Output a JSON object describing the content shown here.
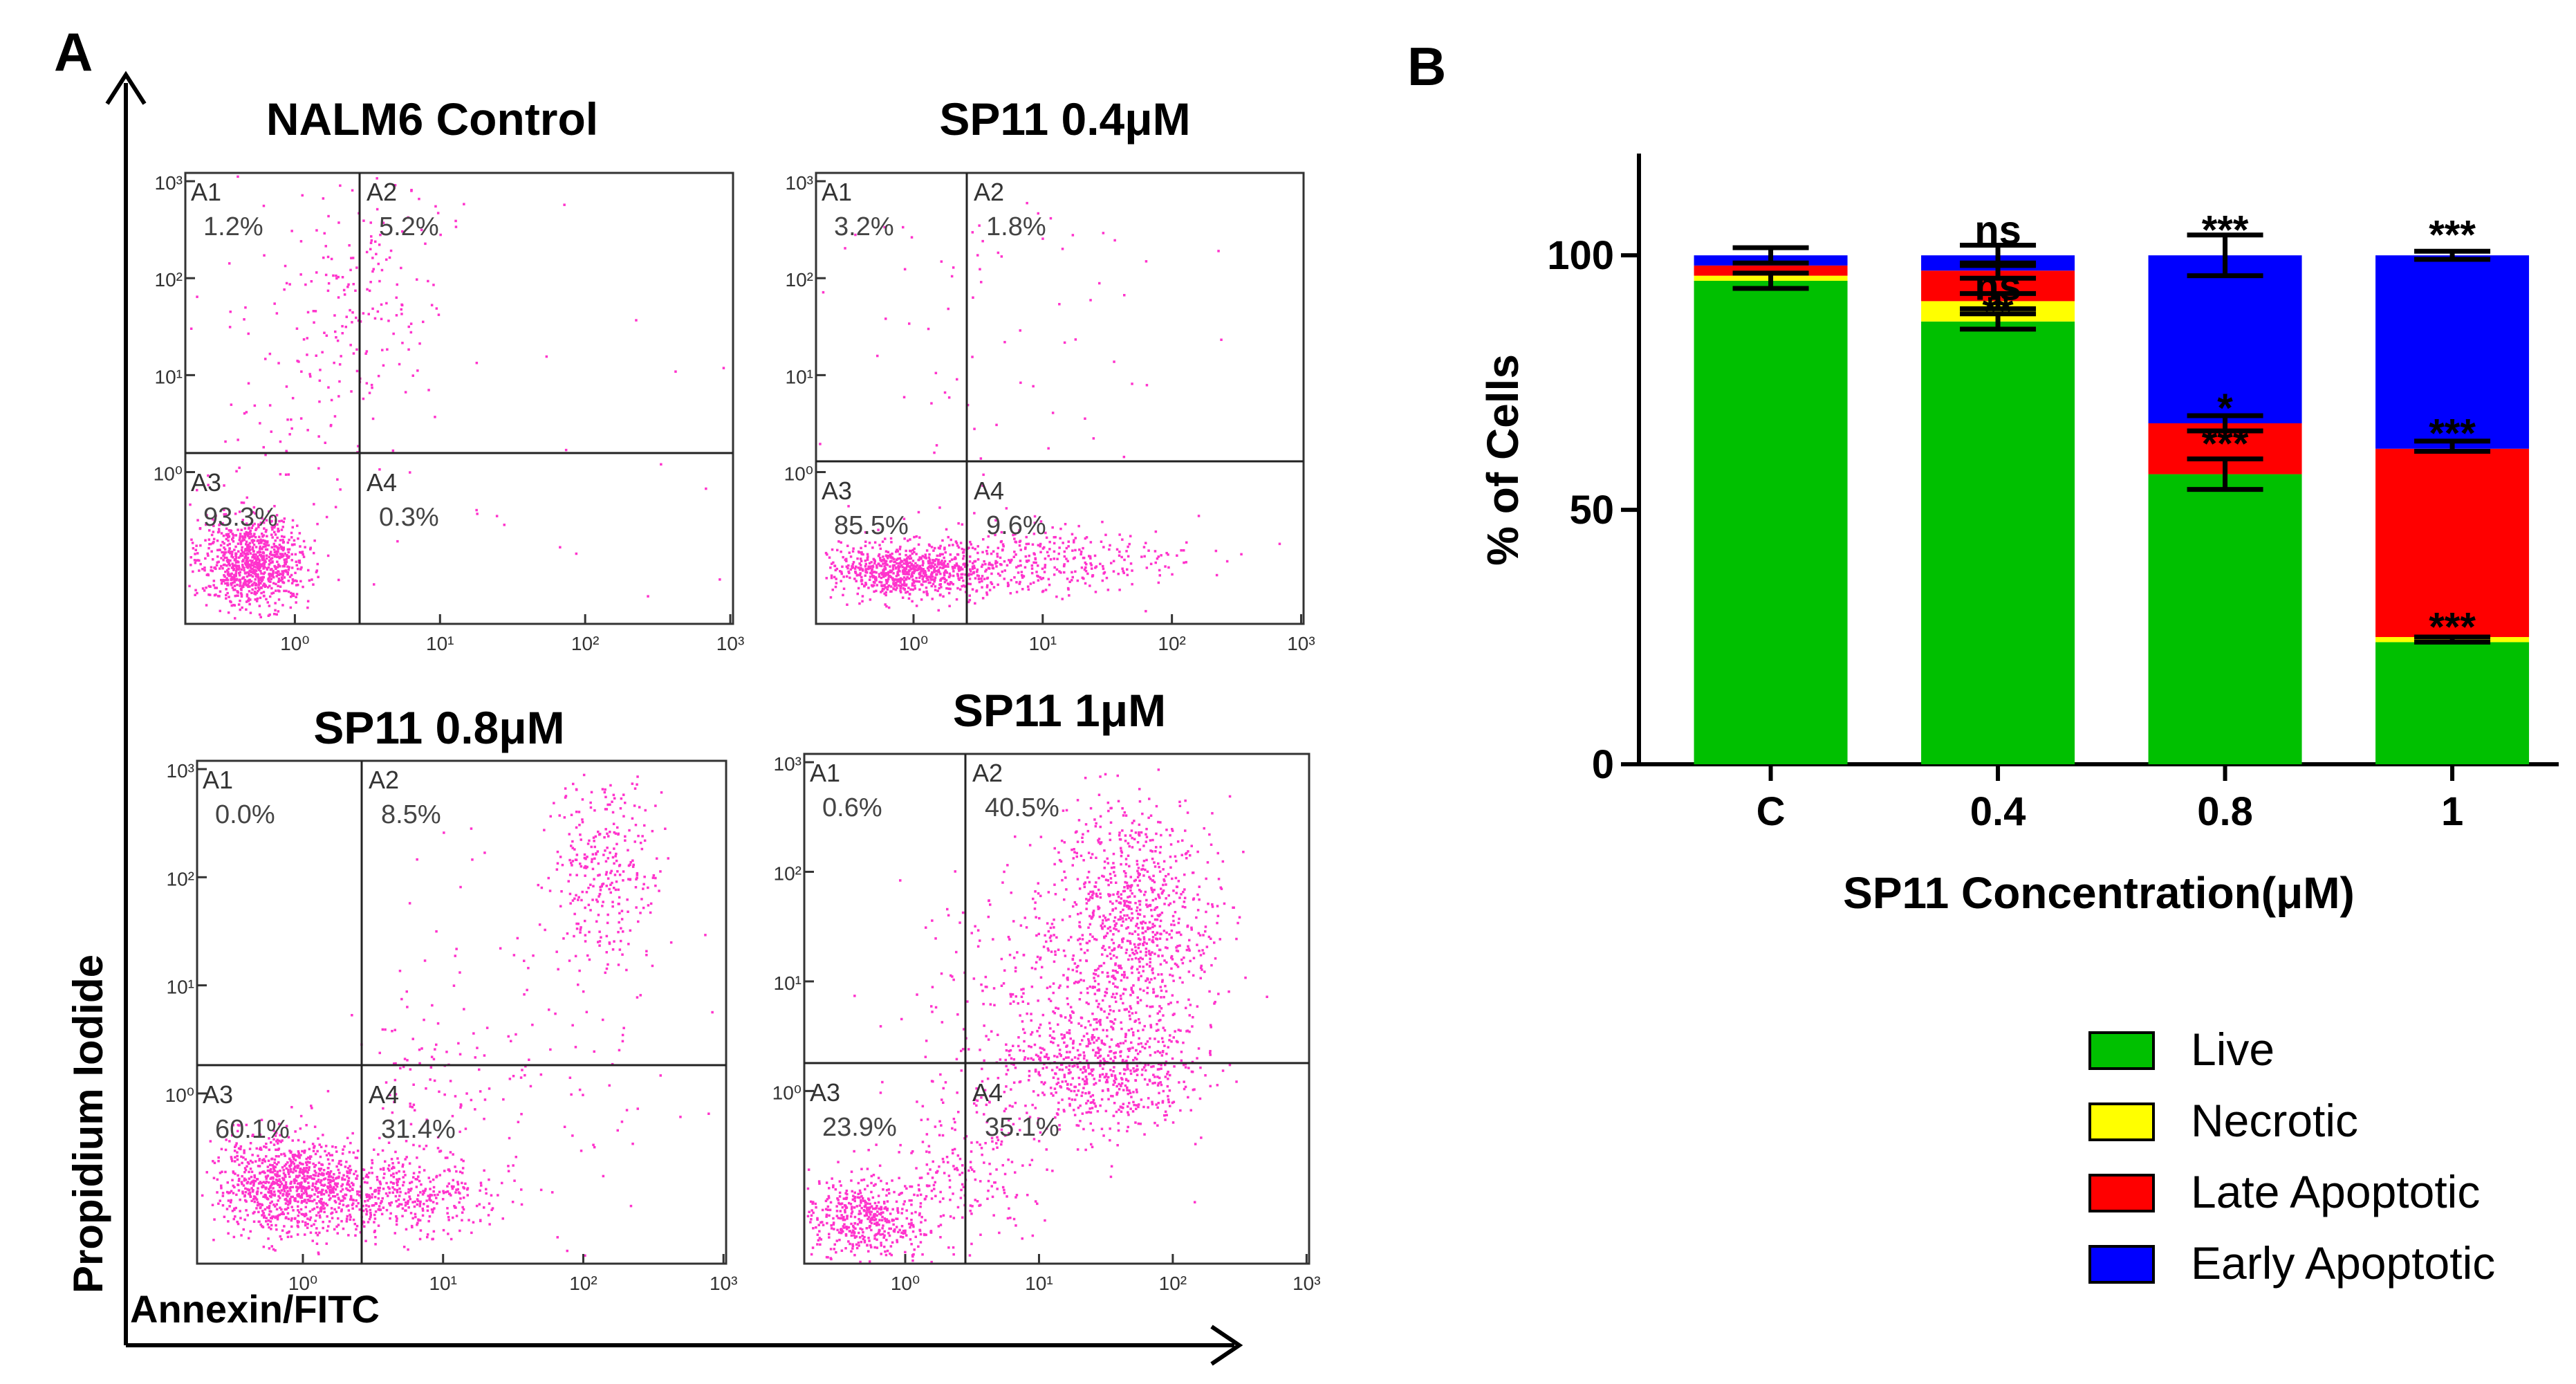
{
  "colors": {
    "dot": "#ff33cc",
    "live": "#00c000",
    "necrotic": "#ffff00",
    "late": "#ff0000",
    "early": "#0000ff",
    "ink": "#000000"
  },
  "panel_a": {
    "label": "A",
    "y_axis_label": "Propidium Iodide",
    "x_axis_label": "Annexin/FITC",
    "plots": [
      {
        "title": "NALM6 Control",
        "quadrants": [
          {
            "name": "A1",
            "pct": "1.2%"
          },
          {
            "name": "A2",
            "pct": "5.2%"
          },
          {
            "name": "A3",
            "pct": "93.3%"
          },
          {
            "name": "A4",
            "pct": "0.3%"
          }
        ]
      },
      {
        "title": "SP11 0.4μM",
        "quadrants": [
          {
            "name": "A1",
            "pct": "3.2%"
          },
          {
            "name": "A2",
            "pct": "1.8%"
          },
          {
            "name": "A3",
            "pct": "85.5%"
          },
          {
            "name": "A4",
            "pct": "9.6%"
          }
        ]
      },
      {
        "title": "SP11 0.8μM",
        "quadrants": [
          {
            "name": "A1",
            "pct": "0.0%"
          },
          {
            "name": "A2",
            "pct": "8.5%"
          },
          {
            "name": "A3",
            "pct": "60.1%"
          },
          {
            "name": "A4",
            "pct": "31.4%"
          }
        ]
      },
      {
        "title": "SP11 1μM",
        "quadrants": [
          {
            "name": "A1",
            "pct": "0.6%"
          },
          {
            "name": "A2",
            "pct": "40.5%"
          },
          {
            "name": "A3",
            "pct": "23.9%"
          },
          {
            "name": "A4",
            "pct": "35.1%"
          }
        ]
      }
    ],
    "y_ticks": [
      "10³",
      "10²",
      "10¹",
      "10⁰"
    ],
    "x_ticks": [
      "10⁰",
      "10¹",
      "10²",
      "10³"
    ]
  },
  "chart_data": {
    "type": "bar",
    "panel_label": "B",
    "stacked": true,
    "title": "",
    "xlabel": "SP11 Concentration(μM)",
    "ylabel": "% of Cells",
    "ylim": [
      0,
      120
    ],
    "yticks": [
      0,
      50,
      100
    ],
    "categories": [
      "C",
      "0.4",
      "0.8",
      "1"
    ],
    "series": [
      {
        "name": "Live",
        "color": "#00c000",
        "values": [
          95,
          87,
          57,
          24
        ]
      },
      {
        "name": "Necrotic",
        "color": "#ffff00",
        "values": [
          1,
          4,
          0,
          1
        ]
      },
      {
        "name": "Late Apoptotic",
        "color": "#ff0000",
        "values": [
          2,
          6,
          10,
          37
        ]
      },
      {
        "name": "Early Apoptotic",
        "color": "#0000ff",
        "values": [
          2,
          3,
          33,
          38
        ]
      }
    ],
    "error_bars": [
      {
        "category": "C",
        "at": 95,
        "err": 1.5
      },
      {
        "category": "C",
        "at": 100,
        "err": 1.5
      },
      {
        "category": "0.4",
        "at": 87,
        "err": 1.5
      },
      {
        "category": "0.4",
        "at": 91,
        "err": 1.5
      },
      {
        "category": "0.4",
        "at": 97,
        "err": 1.5
      },
      {
        "category": "0.4",
        "at": 100,
        "err": 2
      },
      {
        "category": "0.8",
        "at": 57,
        "err": 3
      },
      {
        "category": "0.8",
        "at": 67,
        "err": 1.5
      },
      {
        "category": "0.8",
        "at": 100,
        "err": 4
      },
      {
        "category": "1",
        "at": 24.5,
        "err": 0.5
      },
      {
        "category": "1",
        "at": 62.5,
        "err": 1
      },
      {
        "category": "1",
        "at": 100,
        "err": 0.8
      }
    ],
    "annotations": [
      {
        "category": "0.4",
        "text": "ns",
        "at": 105
      },
      {
        "category": "0.4",
        "text": "ns",
        "at": 94
      },
      {
        "category": "0.4",
        "text": "**",
        "at": 89
      },
      {
        "category": "0.8",
        "text": "***",
        "at": 105
      },
      {
        "category": "0.8",
        "text": "*",
        "at": 70
      },
      {
        "category": "0.8",
        "text": "***",
        "at": 63
      },
      {
        "category": "1",
        "text": "***",
        "at": 104
      },
      {
        "category": "1",
        "text": "***",
        "at": 65
      },
      {
        "category": "1",
        "text": "***",
        "at": 27
      }
    ],
    "legend": [
      "Live",
      "Necrotic",
      "Late Apoptotic",
      "Early Apoptotic"
    ],
    "legend_position": "bottom-right"
  }
}
